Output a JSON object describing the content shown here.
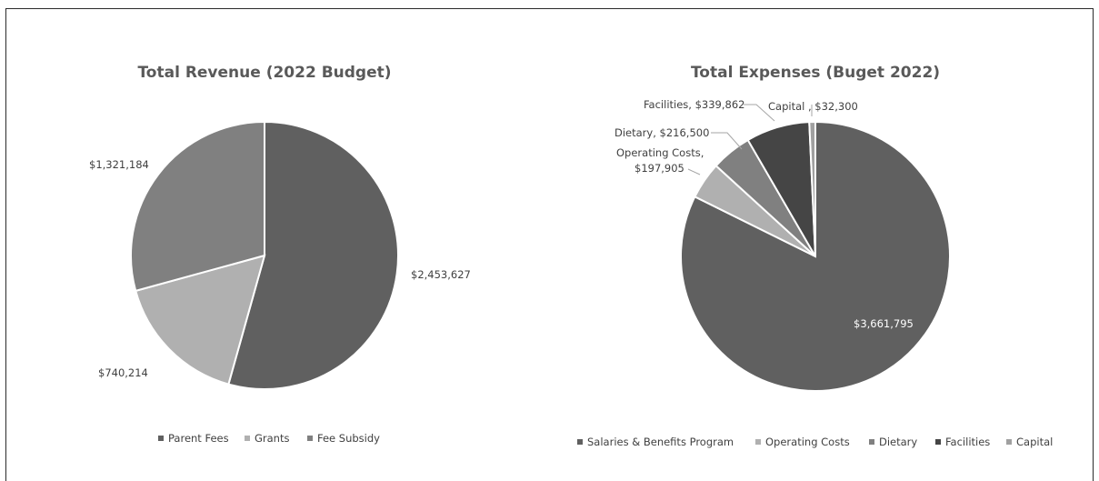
{
  "chart_data": [
    {
      "type": "pie",
      "title": "Total Revenue (2022 Budget)",
      "categories": [
        "Parent Fees",
        "Grants",
        "Fee Subsidy"
      ],
      "values": [
        2453627,
        740214,
        1321184
      ],
      "labels": [
        "$2,453,627",
        "$740,214",
        "$1,321,184"
      ],
      "colors": [
        "#606060",
        "#b0b0b0",
        "#808080"
      ],
      "legend": "bottom",
      "start_angle_deg": 0
    },
    {
      "type": "pie",
      "title": "Total Expenses (Buget 2022)",
      "categories": [
        "Salaries & Benefits Program",
        "Operating Costs",
        "Dietary",
        "Facilities",
        "Capital"
      ],
      "values": [
        3661795,
        197905,
        216500,
        339862,
        32300
      ],
      "labels": [
        "$3,661,795",
        "Operating Costs,\n$197,905",
        "Dietary, $216,500",
        "Facilities, $339,862",
        "Capital , $32,300"
      ],
      "colors": [
        "#606060",
        "#b0b0b0",
        "#808080",
        "#454545",
        "#a0a0a0"
      ],
      "legend": "bottom",
      "start_angle_deg": 0
    }
  ]
}
